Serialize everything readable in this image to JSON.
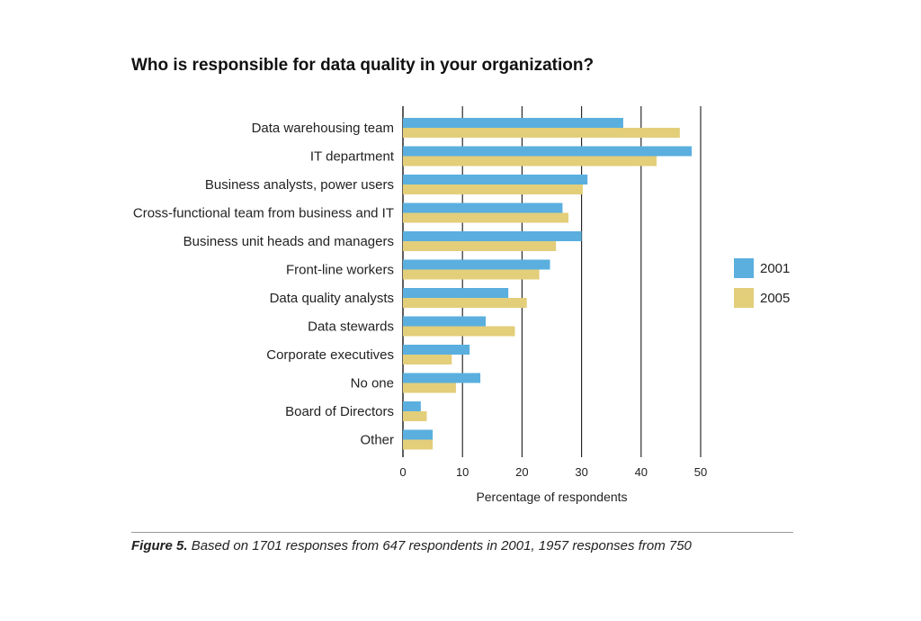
{
  "title": "Who is responsible for data quality in your organization?",
  "caption": {
    "label": "Figure 5.",
    "text": "Based on 1701 responses from 647 respondents in 2001, 1957 responses from 750"
  },
  "chart_data": {
    "type": "bar",
    "orientation": "horizontal",
    "title": "Who is responsible for data quality in your organization?",
    "xlabel": "Percentage of respondents",
    "ylabel": "",
    "xlim": [
      0,
      50
    ],
    "xticks": [
      0,
      10,
      20,
      30,
      40,
      50
    ],
    "grid": true,
    "legend_position": "right",
    "categories": [
      "Data warehousing team",
      "IT department",
      "Business analysts, power users",
      "Cross-functional team from business and IT",
      "Business unit heads and managers",
      "Front-line workers",
      "Data quality analysts",
      "Data stewards",
      "Corporate executives",
      "No one",
      "Board of Directors",
      "Other"
    ],
    "series": [
      {
        "name": "2001",
        "color": "#5aafdf",
        "values": [
          37,
          48.5,
          31,
          26.8,
          30,
          24.7,
          17.7,
          13.9,
          11.2,
          13,
          3,
          5
        ]
      },
      {
        "name": "2005",
        "color": "#e3ce7a",
        "values": [
          46.5,
          42.6,
          30.2,
          27.8,
          25.7,
          22.9,
          20.8,
          18.8,
          8.2,
          8.9,
          4,
          5
        ]
      }
    ]
  }
}
